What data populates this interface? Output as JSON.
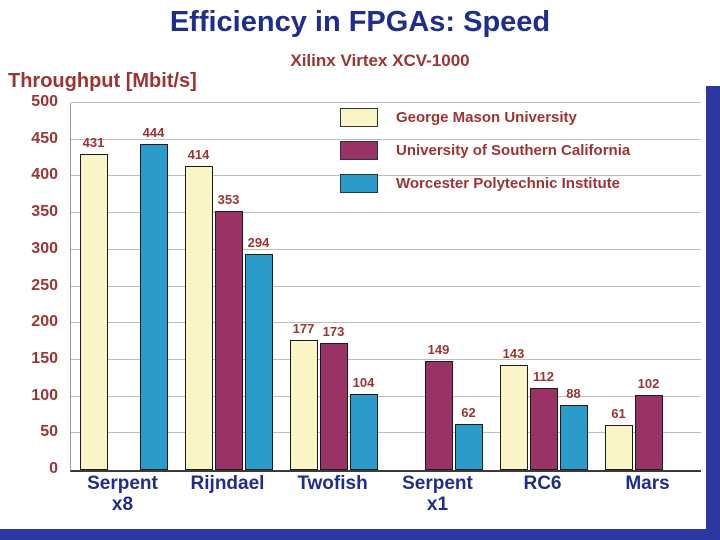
{
  "title": "Efficiency in FPGAs: Speed",
  "subtitle": "Xilinx Virtex XCV-1000",
  "y_axis_title": "Throughput [Mbit/s]",
  "colors": {
    "title_blue": "#1F2D8C",
    "text_red": "#9C3431",
    "grid": "#BDBDBD",
    "frame_blue": "#2C38A0",
    "bar_yellow": "#FAF5C6",
    "bar_plum": "#993366",
    "bar_blue": "#2B9BC9"
  },
  "chart_data": {
    "type": "bar",
    "title": "Efficiency in FPGAs: Speed",
    "subtitle": "Xilinx Virtex XCV-1000",
    "xlabel": "",
    "ylabel": "Throughput [Mbit/s]",
    "ylim": [
      0,
      500
    ],
    "ytick_step": 50,
    "grid": true,
    "legend_position": "top-right-inside",
    "categories": [
      "Serpent x8",
      "Rijndael",
      "Twofish",
      "Serpent x1",
      "RC6",
      "Mars"
    ],
    "series": [
      {
        "name": "George Mason University",
        "color": "#FAF5C6",
        "values": [
          431,
          414,
          177,
          null,
          143,
          61
        ]
      },
      {
        "name": "University of Southern California",
        "color": "#993366",
        "values": [
          null,
          353,
          173,
          149,
          112,
          102
        ]
      },
      {
        "name": "Worcester Polytechnic Institute",
        "color": "#2B9BC9",
        "values": [
          444,
          294,
          104,
          62,
          88,
          null
        ]
      }
    ]
  }
}
